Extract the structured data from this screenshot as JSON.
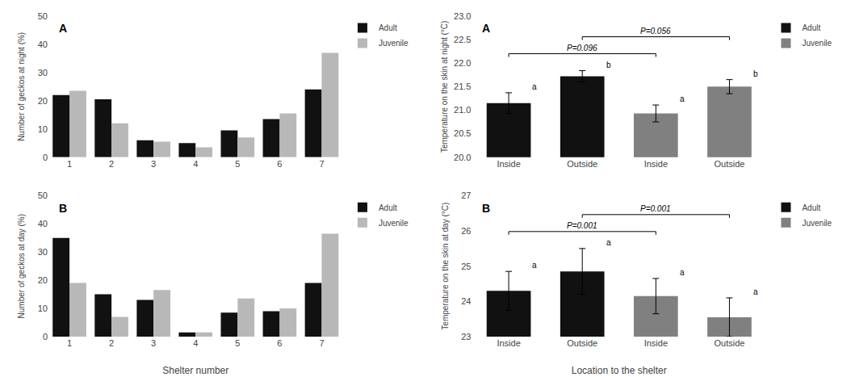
{
  "chart_data": [
    {
      "type": "bar",
      "title": "A",
      "categories": [
        "1",
        "2",
        "3",
        "4",
        "5",
        "6",
        "7"
      ],
      "series": [
        {
          "name": "Adult",
          "color": "#111111",
          "values": [
            22,
            20.5,
            6,
            5,
            9.5,
            13.5,
            24
          ]
        },
        {
          "name": "Juvenile",
          "color": "#b8b8b8",
          "values": [
            23.5,
            12,
            5.5,
            3.5,
            7,
            15.5,
            37
          ]
        }
      ],
      "ylabel": "Number of geckos at night (%)",
      "ylim": [
        0,
        50
      ],
      "yticks": [
        0,
        10,
        20,
        30,
        40,
        50
      ],
      "grid": false,
      "legend": "upper right"
    },
    {
      "type": "bar",
      "title": "B",
      "categories": [
        "1",
        "2",
        "3",
        "4",
        "5",
        "6",
        "7"
      ],
      "series": [
        {
          "name": "Adult",
          "color": "#111111",
          "values": [
            35,
            15,
            13,
            1.5,
            8.5,
            9,
            19
          ]
        },
        {
          "name": "Juvenile",
          "color": "#b8b8b8",
          "values": [
            19,
            7,
            16.5,
            1.5,
            13.5,
            10,
            36.5
          ]
        }
      ],
      "xlabel": "Shelter number",
      "ylabel": "Number of geckos at day (%)",
      "ylim": [
        0,
        50
      ],
      "yticks": [
        0,
        10,
        20,
        30,
        40,
        50
      ],
      "grid": false,
      "legend": "upper right"
    },
    {
      "type": "bar",
      "title": "A",
      "categories": [
        "Inside",
        "Outside",
        "Inside",
        "Outside"
      ],
      "series": [
        {
          "name": "Adult",
          "color": "#111111",
          "values": [
            21.15,
            21.72,
            null,
            null
          ],
          "errors": [
            0.22,
            0.12,
            null,
            null
          ]
        },
        {
          "name": "Juvenile",
          "color": "#808080",
          "values": [
            null,
            null,
            20.93,
            21.5
          ],
          "errors": [
            null,
            null,
            0.18,
            0.15
          ]
        }
      ],
      "bar_letters": [
        "a",
        "b",
        "a",
        "b"
      ],
      "annotations": [
        {
          "text": "P=0.096",
          "from": 0,
          "to": 2
        },
        {
          "text": "P=0.056",
          "from": 1,
          "to": 3
        }
      ],
      "ylabel": "Temperature on the skin at night (°C)",
      "ylim": [
        20.0,
        23.0
      ],
      "yticks": [
        {
          "value": 20.0,
          "label": "20.0"
        },
        20.5,
        {
          "value": 21.0,
          "label": "21.0"
        },
        21.5,
        {
          "value": 22.0,
          "label": "22.0"
        },
        22.5,
        {
          "value": 23.0,
          "label": "23.0"
        }
      ],
      "grid": false,
      "legend": "upper right"
    },
    {
      "type": "bar",
      "title": "B",
      "categories": [
        "Inside",
        "Outside",
        "Inside",
        "Outside"
      ],
      "series": [
        {
          "name": "Adult",
          "color": "#111111",
          "values": [
            24.3,
            24.85,
            null,
            null
          ],
          "errors": [
            0.55,
            0.65,
            null,
            null
          ]
        },
        {
          "name": "Juvenile",
          "color": "#808080",
          "values": [
            null,
            null,
            24.15,
            23.55
          ],
          "errors": [
            null,
            null,
            0.5,
            0.55
          ]
        }
      ],
      "bar_letters": [
        "a",
        "a",
        "a",
        "a"
      ],
      "annotations": [
        {
          "text": "P=0.001",
          "from": 0,
          "to": 2
        },
        {
          "text": "P=0.001",
          "from": 1,
          "to": 3
        }
      ],
      "xlabel": "Location to the shelter",
      "ylabel": "Temperature on the skin at day (°C)",
      "ylim": [
        23,
        27
      ],
      "yticks": [
        23,
        24,
        25,
        26,
        27
      ],
      "grid": false,
      "legend": "upper right"
    }
  ]
}
